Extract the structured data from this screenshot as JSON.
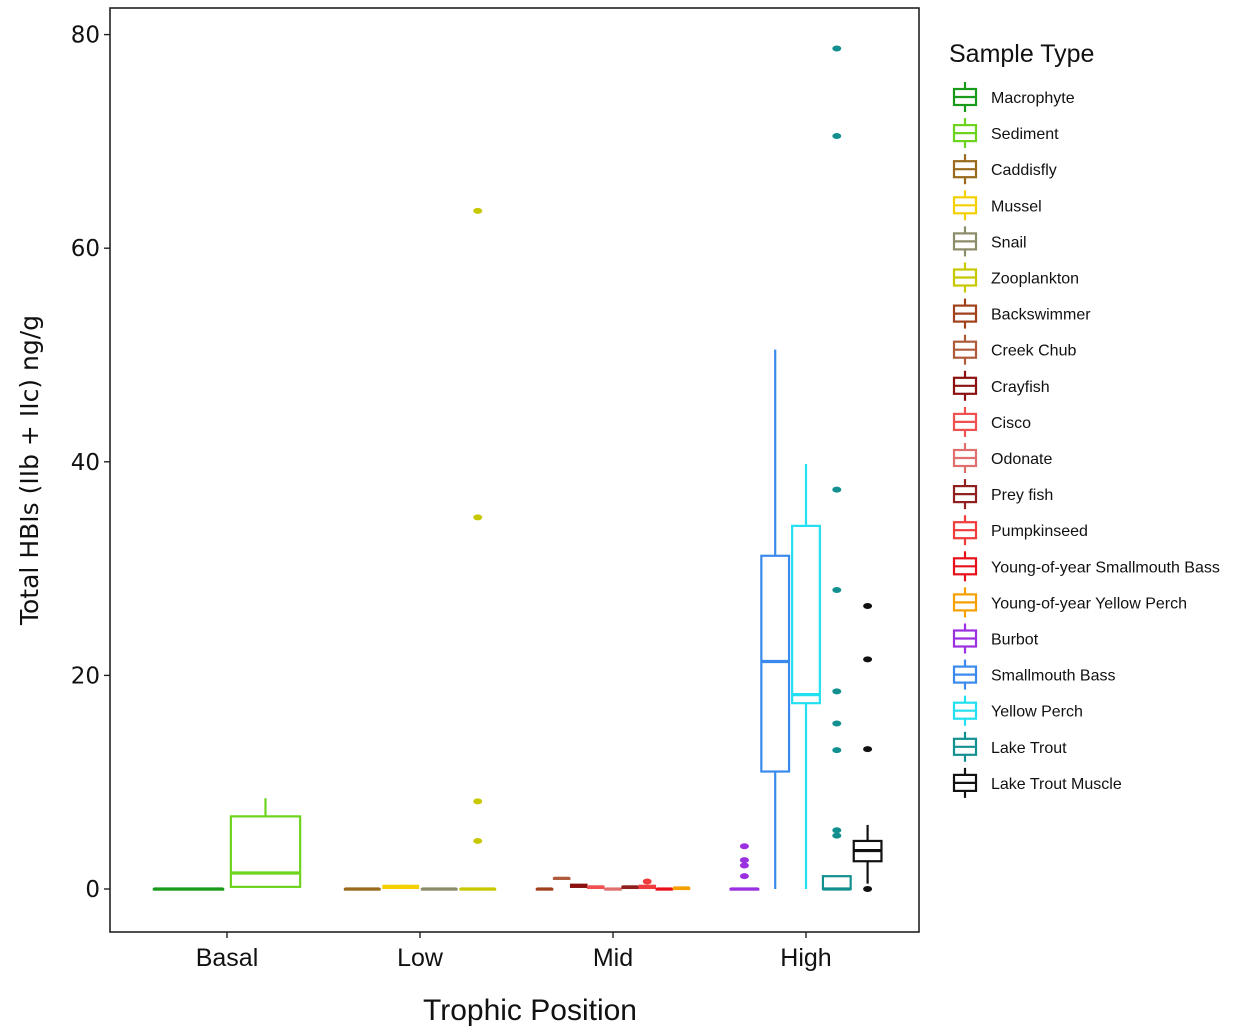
{
  "chart_data": {
    "type": "boxplot",
    "xlabel": "Trophic Position",
    "ylabel": "Total HBIs (IIb + IIc) ng/g",
    "ylim": [
      -4,
      83
    ],
    "yticks": [
      0,
      20,
      40,
      60,
      80
    ],
    "grid": false,
    "legend_position": "right",
    "legend_title": "Sample Type",
    "categories": [
      "Basal",
      "Low",
      "Mid",
      "High"
    ],
    "series": [
      {
        "name": "Macrophyte",
        "color": "#1a9a1a",
        "category": "Basal",
        "min": 0,
        "q1": 0,
        "median": 0,
        "q3": 0,
        "max": 0,
        "outliers": []
      },
      {
        "name": "Sediment",
        "color": "#6cd41c",
        "category": "Basal",
        "min": 0.2,
        "q1": 0.2,
        "median": 1.5,
        "q3": 6.8,
        "max": 8.5,
        "outliers": []
      },
      {
        "name": "Caddisfly",
        "color": "#9a6a1c",
        "category": "Low",
        "min": 0,
        "q1": 0,
        "median": 0,
        "q3": 0,
        "max": 0,
        "outliers": []
      },
      {
        "name": "Mussel",
        "color": "#f5d000",
        "category": "Low",
        "min": 0,
        "q1": 0.1,
        "median": 0.2,
        "q3": 0.3,
        "max": 0.4,
        "outliers": []
      },
      {
        "name": "Snail",
        "color": "#8c8c6a",
        "category": "Low",
        "min": 0,
        "q1": 0,
        "median": 0,
        "q3": 0,
        "max": 0,
        "outliers": []
      },
      {
        "name": "Zooplankton",
        "color": "#c8c800",
        "category": "Low",
        "min": 0,
        "q1": 0,
        "median": 0,
        "q3": 0,
        "max": 0,
        "outliers": [
          4.5,
          8.2,
          34.8,
          63.5
        ]
      },
      {
        "name": "Backswimmer",
        "color": "#a0401c",
        "category": "Mid",
        "min": 0,
        "q1": 0,
        "median": 0,
        "q3": 0,
        "max": 0,
        "outliers": []
      },
      {
        "name": "Creek Chub",
        "color": "#b05a3c",
        "category": "Mid",
        "min": 1,
        "q1": 1,
        "median": 1,
        "q3": 1,
        "max": 1,
        "outliers": []
      },
      {
        "name": "Crayfish",
        "color": "#8b1010",
        "category": "Mid",
        "min": 0.2,
        "q1": 0.2,
        "median": 0.3,
        "q3": 0.4,
        "max": 0.4,
        "outliers": []
      },
      {
        "name": "Cisco",
        "color": "#f05050",
        "category": "Mid",
        "min": 0,
        "q1": 0.1,
        "median": 0.2,
        "q3": 0.2,
        "max": 0.2,
        "outliers": []
      },
      {
        "name": "Odonate",
        "color": "#e07070",
        "category": "Mid",
        "min": 0,
        "q1": 0,
        "median": 0,
        "q3": 0,
        "max": 0,
        "outliers": []
      },
      {
        "name": "Prey fish",
        "color": "#902020",
        "category": "Mid",
        "min": 0,
        "q1": 0.1,
        "median": 0.2,
        "q3": 0.2,
        "max": 0.2,
        "outliers": []
      },
      {
        "name": "Pumpkinseed",
        "color": "#f03c3c",
        "category": "Mid",
        "min": 0,
        "q1": 0.1,
        "median": 0.2,
        "q3": 0.3,
        "max": 0.3,
        "outliers": [
          0.7
        ]
      },
      {
        "name": "Young-of-year Smallmouth Bass",
        "color": "#e8101a",
        "category": "Mid",
        "min": 0,
        "q1": 0,
        "median": 0,
        "q3": 0,
        "max": 0,
        "outliers": []
      },
      {
        "name": "Young-of-year Yellow Perch",
        "color": "#f5a000",
        "category": "Mid",
        "min": 0,
        "q1": 0,
        "median": 0.1,
        "q3": 0.1,
        "max": 0.1,
        "outliers": []
      },
      {
        "name": "Burbot",
        "color": "#9a30e0",
        "category": "High",
        "min": 0,
        "q1": 0,
        "median": 0,
        "q3": 0,
        "max": 0,
        "outliers": [
          1.2,
          2.2,
          2.7,
          4.0
        ]
      },
      {
        "name": "Smallmouth Bass",
        "color": "#3a8aee",
        "category": "High",
        "min": 0,
        "q1": 11,
        "median": 21.3,
        "q3": 31.2,
        "max": 50.5,
        "outliers": []
      },
      {
        "name": "Yellow Perch",
        "color": "#22e0f0",
        "category": "High",
        "min": 0,
        "q1": 17.4,
        "median": 18.2,
        "q3": 34,
        "max": 39.8,
        "outliers": []
      },
      {
        "name": "Lake Trout",
        "color": "#129090",
        "category": "High",
        "min": 0,
        "q1": 0,
        "median": 0,
        "q3": 1.2,
        "max": 1.2,
        "outliers": [
          5,
          5.5,
          13,
          15.5,
          18.5,
          28,
          37.4,
          70.5,
          78.7
        ]
      },
      {
        "name": "Lake Trout Muscle",
        "color": "#111111",
        "category": "High",
        "min": 0.5,
        "q1": 2.6,
        "median": 3.6,
        "q3": 4.5,
        "max": 6,
        "outliers": [
          0,
          13.1,
          21.5,
          26.5
        ]
      }
    ]
  }
}
